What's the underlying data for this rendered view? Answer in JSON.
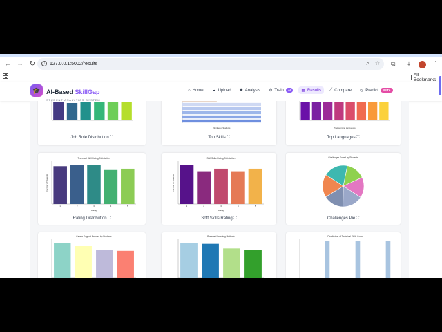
{
  "browser": {
    "url": "127.0.0.1:5002/results",
    "all_bookmarks": "All Bookmarks"
  },
  "brand": {
    "name_part1": "AI-Based ",
    "name_part2": "SkillGap",
    "subtitle": "STUDENT ANALYTICS SYSTEM"
  },
  "nav": {
    "items": [
      {
        "label": "Home",
        "icon": "home-icon"
      },
      {
        "label": "Upload",
        "icon": "cloud-upload-icon"
      },
      {
        "label": "Analysis",
        "icon": "brain-icon"
      },
      {
        "label": "Train",
        "icon": "robot-icon",
        "badge": "AI",
        "badge_color": "#8b5cf6"
      },
      {
        "label": "Results",
        "icon": "table-icon",
        "active": true
      },
      {
        "label": "Compare",
        "icon": "chart-line-icon"
      },
      {
        "label": "Predict",
        "icon": "predict-icon",
        "badge": "BETA",
        "badge_color": "#e44ca5"
      }
    ]
  },
  "cards": {
    "job_role": "Job Role Distribution",
    "top_skills": "Top Skills",
    "top_languages": "Top Languages",
    "rating": "Rating Distribution",
    "soft_skills": "Soft Skills Rating",
    "challenges": "Challenges Pie"
  },
  "expand_glyph": "⛶",
  "chart_data": [
    {
      "id": "job_role",
      "type": "bar",
      "values": [
        26,
        25,
        26,
        26,
        26,
        27
      ],
      "colors": [
        "#443a83",
        "#31688e",
        "#21918c",
        "#35b779",
        "#6ece58",
        "#b5de2b"
      ],
      "title": ""
    },
    {
      "id": "top_skills",
      "type": "bar",
      "orientation": "horizontal",
      "values": [
        35,
        80,
        80,
        80,
        80,
        80
      ],
      "colors": [
        "#e9d6c8",
        "#cfd9f3",
        "#b7c8ef",
        "#9db6ea",
        "#8aa6e6",
        "#6f8fdf"
      ],
      "xlabel": "Number of Students"
    },
    {
      "id": "top_languages",
      "type": "bar",
      "values": [
        35,
        35,
        35,
        35,
        35,
        35,
        35,
        35
      ],
      "colors": [
        "#6a11a8",
        "#7a1fa2",
        "#9c2a98",
        "#bf3a7f",
        "#db4d6a",
        "#f06b4f",
        "#f99a3a",
        "#fbd13c"
      ],
      "xlabel": "Programming Languages"
    },
    {
      "id": "rating",
      "type": "bar",
      "title": "Technical Skill Rating Distribution",
      "categories": [
        "1",
        "2",
        "3",
        "4",
        "5"
      ],
      "values": [
        30,
        31,
        31,
        27,
        28
      ],
      "colors": [
        "#483a7e",
        "#3a5f8c",
        "#2e8b87",
        "#43b071",
        "#8ccc55"
      ],
      "xlabel": "Rating",
      "ylabel": "Number of Students"
    },
    {
      "id": "soft_skills",
      "type": "bar",
      "title": "Soft Skills Rating Distribution",
      "categories": [
        "1",
        "2",
        "3",
        "4",
        "5"
      ],
      "values": [
        31,
        26,
        28,
        26,
        28
      ],
      "colors": [
        "#56128a",
        "#8a2a7e",
        "#c04a6e",
        "#e57a56",
        "#f2b24a"
      ],
      "xlabel": "Rating",
      "ylabel": "Number of Students"
    },
    {
      "id": "challenges",
      "type": "pie",
      "title": "Challenges Faced by Students",
      "values": [
        15,
        16,
        16,
        16,
        18,
        19
      ],
      "colors": [
        "#8fd14f",
        "#e377c2",
        "#9aa8c9",
        "#7f8fb0",
        "#f0864f",
        "#3db8b0"
      ]
    },
    {
      "id": "career_support",
      "type": "bar",
      "title": "Career Support Needed by Students",
      "values": [
        36,
        33,
        29,
        28
      ],
      "colors": [
        "#8dd3c7",
        "#ffffb3",
        "#bebada",
        "#fb8072"
      ]
    },
    {
      "id": "learning_methods",
      "type": "bar",
      "title": "Preferred Learning Methods",
      "values": [
        38,
        37,
        32,
        30
      ],
      "colors": [
        "#a6cee3",
        "#1f78b4",
        "#b2df8a",
        "#33a02c"
      ]
    },
    {
      "id": "tech_skills_count",
      "type": "histogram",
      "title": "Distribution of Technical Skills Count",
      "values": [
        0,
        0,
        0,
        0,
        0,
        1,
        0,
        0,
        0,
        0,
        0,
        1,
        0,
        0,
        0,
        0,
        0,
        1
      ],
      "colors": [
        "#a8c4e0"
      ]
    }
  ]
}
